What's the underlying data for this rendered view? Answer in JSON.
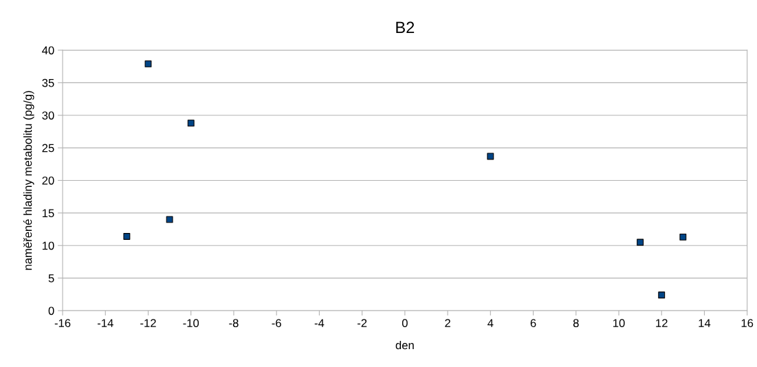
{
  "chart_data": {
    "type": "scatter",
    "title": "B2",
    "xlabel": "den",
    "ylabel": "naměřené hladiny metabolitu (pg/g)",
    "x": [
      -13,
      -12,
      -11,
      -10,
      4,
      11,
      12,
      13
    ],
    "series": [
      {
        "color": "#004586",
        "values": [
          11.4,
          37.9,
          14.0,
          28.8,
          23.7,
          10.5,
          2.4,
          11.3
        ]
      }
    ],
    "marker": "square",
    "grid": "y",
    "legend": false,
    "xlim": [
      -16,
      16
    ],
    "xticks": [
      -16,
      -14,
      -12,
      -10,
      -8,
      -6,
      -4,
      -2,
      0,
      2,
      4,
      6,
      8,
      10,
      12,
      14,
      16
    ],
    "ylim": [
      0,
      40
    ],
    "yticks": [
      0,
      5,
      10,
      15,
      20,
      25,
      30,
      35,
      40
    ]
  }
}
